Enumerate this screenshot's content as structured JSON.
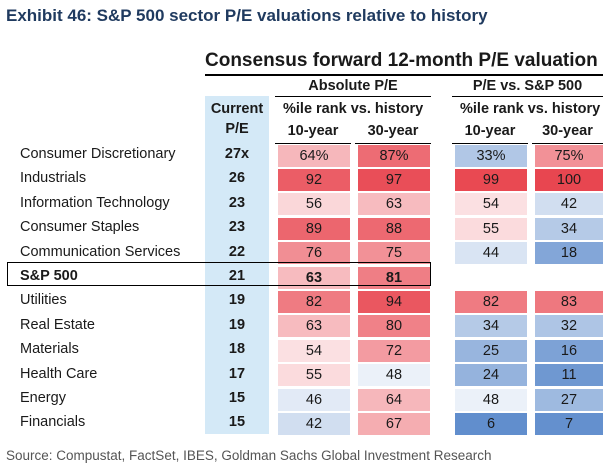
{
  "exhibit_title": "Exhibit 46: S&P 500 sector P/E valuations relative to history",
  "chart_data": {
    "type": "table",
    "title": "Consensus forward 12-month P/E valuation",
    "header_groups": {
      "absolute": "Absolute P/E",
      "relative": "P/E vs. S&P 500",
      "subheader": "%ile rank vs. history",
      "current_line1": "Current",
      "current_line2": "P/E"
    },
    "columns": [
      "10-year",
      "30-year",
      "10-year",
      "30-year"
    ],
    "rows": [
      {
        "sector": "Consumer Discretionary",
        "pe": "27x",
        "abs10": "64%",
        "abs30": "87%",
        "rel10": "33%",
        "rel30": "75%"
      },
      {
        "sector": "Industrials",
        "pe": "26",
        "abs10": "92",
        "abs30": "97",
        "rel10": "99",
        "rel30": "100"
      },
      {
        "sector": "Information Technology",
        "pe": "23",
        "abs10": "56",
        "abs30": "63",
        "rel10": "54",
        "rel30": "42"
      },
      {
        "sector": "Consumer Staples",
        "pe": "23",
        "abs10": "89",
        "abs30": "88",
        "rel10": "55",
        "rel30": "34"
      },
      {
        "sector": "Communication Services",
        "pe": "22",
        "abs10": "76",
        "abs30": "75",
        "rel10": "44",
        "rel30": "18"
      },
      {
        "sector": "S&P 500",
        "pe": "21",
        "abs10": "63",
        "abs30": "81",
        "rel10": "",
        "rel30": "",
        "highlight": true
      },
      {
        "sector": "Utilities",
        "pe": "19",
        "abs10": "82",
        "abs30": "94",
        "rel10": "82",
        "rel30": "83"
      },
      {
        "sector": "Real Estate",
        "pe": "19",
        "abs10": "63",
        "abs30": "80",
        "rel10": "34",
        "rel30": "32"
      },
      {
        "sector": "Materials",
        "pe": "18",
        "abs10": "54",
        "abs30": "72",
        "rel10": "25",
        "rel30": "16"
      },
      {
        "sector": "Health Care",
        "pe": "17",
        "abs10": "55",
        "abs30": "48",
        "rel10": "24",
        "rel30": "11"
      },
      {
        "sector": "Energy",
        "pe": "15",
        "abs10": "46",
        "abs30": "64",
        "rel10": "48",
        "rel30": "27"
      },
      {
        "sector": "Financials",
        "pe": "15",
        "abs10": "42",
        "abs30": "67",
        "rel10": "6",
        "rel30": "7"
      }
    ],
    "colors": {
      "high": "#e8444e",
      "mid": "#ffffff",
      "low": "#4f81c7",
      "current_column": "#d4e9f7"
    }
  },
  "source": "Source: Compustat, FactSet, IBES, Goldman Sachs Global Investment Research"
}
